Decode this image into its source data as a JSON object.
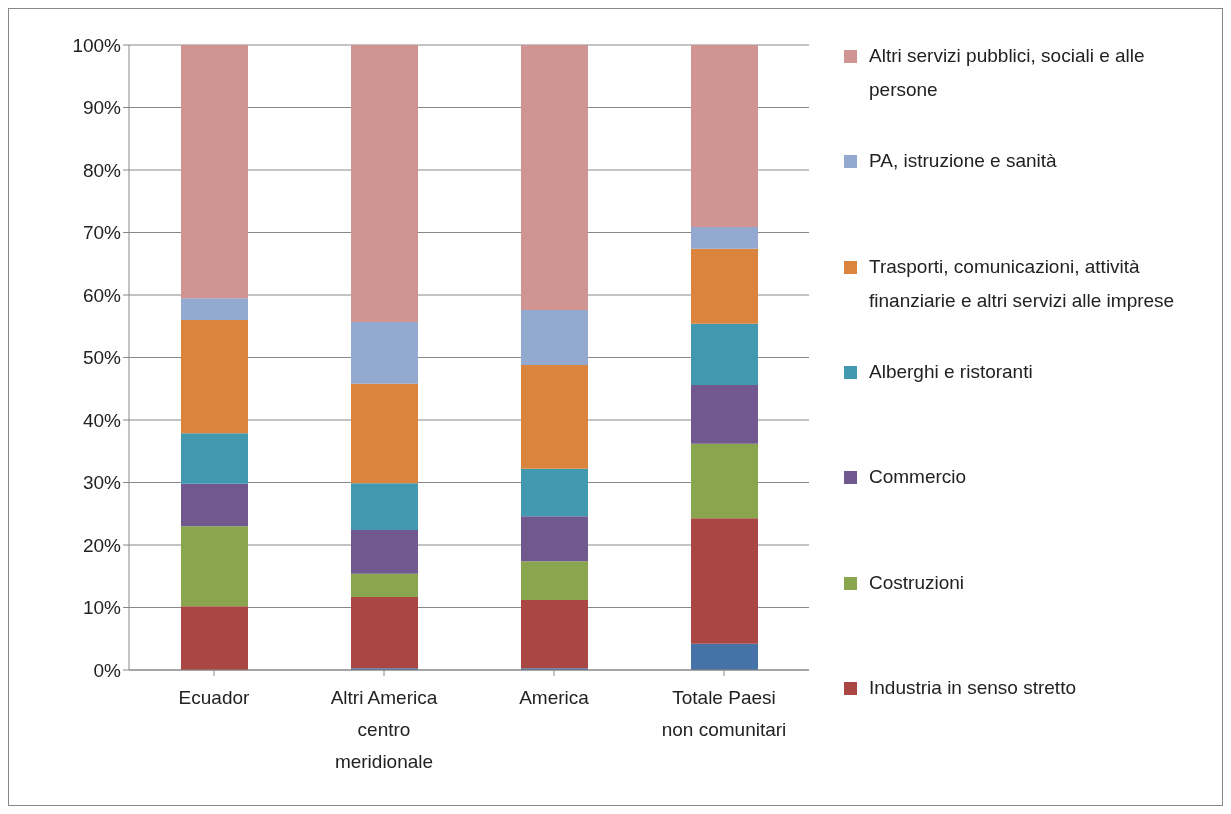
{
  "chart_data": {
    "type": "bar",
    "stacked": true,
    "categories": [
      "Ecuador",
      "Altri America centro meridionale",
      "America",
      "Totale Paesi non comunitari"
    ],
    "series": [
      {
        "color": "#4572a7",
        "values": [
          0,
          0.3,
          0.3,
          4.2
        ]
      },
      {
        "name": "Industria in senso stretto",
        "color": "#aa4643",
        "values": [
          10.2,
          11.4,
          10.9,
          20.1
        ]
      },
      {
        "name": "Costruzioni",
        "color": "#89a54e",
        "values": [
          12.8,
          3.7,
          6.2,
          11.9
        ]
      },
      {
        "name": "Commercio",
        "color": "#71588f",
        "values": [
          6.8,
          7.0,
          7.2,
          9.4
        ]
      },
      {
        "name": "Alberghi e ristoranti",
        "color": "#4198af",
        "values": [
          8.1,
          7.5,
          7.6,
          9.8
        ]
      },
      {
        "name": "Trasporti, comunicazioni, attività finanziarie e altri servizi alle imprese",
        "color": "#db843d",
        "values": [
          18.1,
          15.9,
          16.6,
          12.0
        ]
      },
      {
        "name": "PA, istruzione e sanità",
        "color": "#93a9cf",
        "values": [
          3.5,
          9.9,
          8.8,
          3.5
        ]
      },
      {
        "name": "Altri servizi pubblici, sociali e alle persone",
        "color": "#d09493",
        "values": [
          40.5,
          44.3,
          42.4,
          29.1
        ]
      }
    ],
    "ylim": [
      0,
      100
    ],
    "yticks": [
      {
        "value": 0,
        "label": "0%"
      },
      {
        "value": 10,
        "label": "10%"
      },
      {
        "value": 20,
        "label": "20%"
      },
      {
        "value": 30,
        "label": "30%"
      },
      {
        "value": 40,
        "label": "40%"
      },
      {
        "value": 50,
        "label": "50%"
      },
      {
        "value": 60,
        "label": "60%"
      },
      {
        "value": 70,
        "label": "70%"
      },
      {
        "value": 80,
        "label": "80%"
      },
      {
        "value": 90,
        "label": "90%"
      },
      {
        "value": 100,
        "label": "100%"
      }
    ],
    "grid": "y",
    "legend": "right"
  }
}
